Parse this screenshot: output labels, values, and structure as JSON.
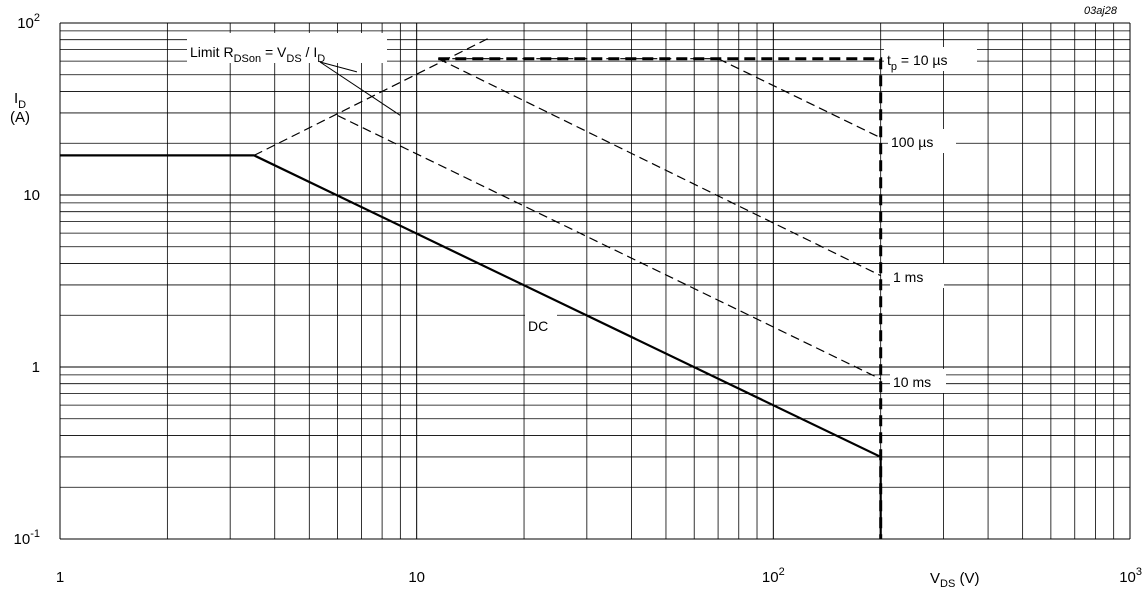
{
  "figure_id": "03aj28",
  "chart_data": {
    "type": "line",
    "x_scale": "log",
    "y_scale": "log",
    "xlim": [
      1,
      1000
    ],
    "ylim": [
      0.1,
      100
    ],
    "grid": true,
    "x_ticks": [
      {
        "value": 1,
        "base": "1",
        "exp": ""
      },
      {
        "value": 10,
        "base": "10",
        "exp": ""
      },
      {
        "value": 100,
        "base": "10",
        "exp": "2"
      },
      {
        "value": 1000,
        "base": "10",
        "exp": "3"
      }
    ],
    "y_ticks": [
      {
        "value": 0.1,
        "base": "10",
        "exp": "-1"
      },
      {
        "value": 1,
        "base": "1",
        "exp": ""
      },
      {
        "value": 10,
        "base": "10",
        "exp": ""
      },
      {
        "value": 100,
        "base": "10",
        "exp": "2"
      }
    ],
    "xlabel": {
      "main": "V",
      "sub": "DS",
      "unit": " (V)"
    },
    "ylabel": {
      "main": "I",
      "sub": "D",
      "unit": "(A)"
    },
    "series": [
      {
        "name": "Limit RDSon = VDS / ID",
        "style": "dashed-thin",
        "x": [
          3.5,
          16
        ],
        "y": [
          17,
          82
        ]
      },
      {
        "name": "tp = 10 µs",
        "style": "dashed-thick",
        "x": [
          11.5,
          200,
          200
        ],
        "y": [
          62,
          62,
          0.1
        ]
      },
      {
        "name": "100 µs",
        "style": "dashed-thin",
        "x": [
          11.5,
          70,
          200
        ],
        "y": [
          62,
          62,
          21.5
        ]
      },
      {
        "name": "1 ms",
        "style": "dashed-thin",
        "x": [
          11.5,
          200
        ],
        "y": [
          62,
          3.4
        ]
      },
      {
        "name": "10 ms",
        "style": "dashed-thin",
        "x": [
          6,
          200
        ],
        "y": [
          29,
          0.85
        ]
      },
      {
        "name": "DC",
        "style": "solid-thick",
        "x": [
          1,
          3.5,
          200,
          200
        ],
        "y": [
          17,
          17,
          0.3,
          0.1
        ]
      }
    ],
    "annotations": [
      {
        "id": "limit",
        "parts": [
          {
            "t": "Limit R"
          },
          {
            "t": "DSon",
            "sub": true
          },
          {
            "t": " = V"
          },
          {
            "t": "DS",
            "sub": true
          },
          {
            "t": " / I"
          },
          {
            "t": "D",
            "sub": true
          }
        ],
        "leader_to": [
          [
            9,
            29
          ],
          [
            6.8,
            52
          ]
        ]
      },
      {
        "id": "tp",
        "parts": [
          {
            "t": "t"
          },
          {
            "t": "p",
            "sub": true
          },
          {
            "t": " = 10 µs"
          }
        ]
      },
      {
        "id": "us100",
        "parts": [
          {
            "t": "100 µs"
          }
        ]
      },
      {
        "id": "ms1",
        "parts": [
          {
            "t": "1 ms"
          }
        ]
      },
      {
        "id": "ms10",
        "parts": [
          {
            "t": "10 ms"
          }
        ]
      },
      {
        "id": "dc",
        "parts": [
          {
            "t": "DC"
          }
        ]
      }
    ]
  }
}
